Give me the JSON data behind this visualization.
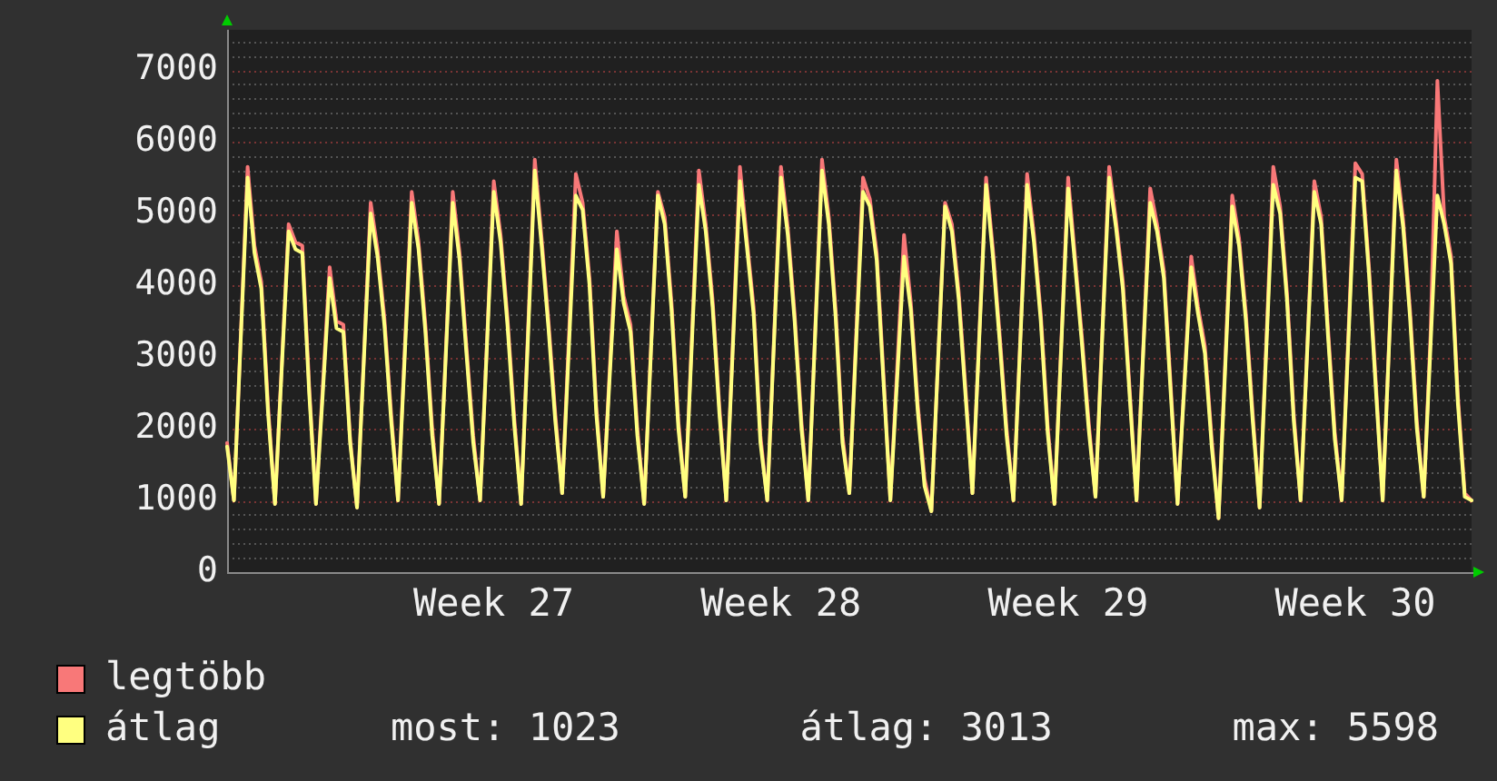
{
  "chart_data": {
    "type": "line",
    "categories": [
      null,
      null,
      null,
      null,
      null,
      null,
      null,
      null,
      null,
      null,
      null,
      null,
      null,
      null,
      null,
      null,
      null,
      null,
      null,
      null,
      null,
      null,
      null,
      null,
      null,
      null,
      null,
      null,
      null,
      null,
      null,
      null,
      null,
      null,
      null,
      null,
      null,
      null,
      null,
      "Week 27",
      null,
      null,
      null,
      null,
      null,
      null,
      null,
      null,
      null,
      null,
      null,
      null,
      null,
      null,
      null,
      null,
      null,
      null,
      null,
      null,
      null,
      null,
      null,
      null,
      null,
      null,
      null,
      null,
      null,
      null,
      null,
      null,
      null,
      null,
      null,
      null,
      null,
      null,
      null,
      null,
      null,
      "Week 28",
      null,
      null,
      null,
      null,
      null,
      null,
      null,
      null,
      null,
      null,
      null,
      null,
      null,
      null,
      null,
      null,
      null,
      null,
      null,
      null,
      null,
      null,
      null,
      null,
      null,
      null,
      null,
      null,
      null,
      null,
      null,
      null,
      null,
      null,
      null,
      null,
      null,
      null,
      null,
      null,
      null,
      "Week 29",
      null,
      null,
      null,
      null,
      null,
      null,
      null,
      null,
      null,
      null,
      null,
      null,
      null,
      null,
      null,
      null,
      null,
      null,
      null,
      null,
      null,
      null,
      null,
      null,
      null,
      null,
      null,
      null,
      null,
      null,
      null,
      null,
      null,
      null,
      null,
      null,
      null,
      null,
      null,
      null,
      null,
      "Week 30",
      null,
      null,
      null,
      null,
      null,
      null,
      null,
      null,
      null,
      null,
      null,
      null,
      null,
      null,
      null,
      null,
      null
    ],
    "series": [
      {
        "name": "legtöbb",
        "color": "#f87878",
        "values": [
          1800,
          1000,
          3300,
          5650,
          4550,
          4050,
          2300,
          950,
          2900,
          4850,
          4600,
          4550,
          2600,
          950,
          2600,
          4250,
          3500,
          3450,
          1850,
          900,
          3000,
          5150,
          4500,
          3550,
          2200,
          1000,
          3150,
          5300,
          4600,
          3450,
          2000,
          950,
          3100,
          5300,
          4450,
          3150,
          1900,
          1000,
          3200,
          5450,
          4700,
          3550,
          2150,
          950,
          3350,
          5750,
          4650,
          3500,
          2200,
          1100,
          3300,
          5550,
          5150,
          4100,
          2300,
          1050,
          2900,
          4750,
          3850,
          3450,
          2000,
          950,
          3150,
          5300,
          4950,
          3750,
          2100,
          1050,
          3350,
          5600,
          4850,
          3800,
          2300,
          1000,
          3300,
          5650,
          4650,
          3700,
          1900,
          1000,
          3300,
          5650,
          4800,
          3600,
          2100,
          1000,
          3350,
          5750,
          4950,
          3650,
          1900,
          1100,
          3300,
          5500,
          5200,
          4450,
          2750,
          1000,
          2850,
          4700,
          3750,
          2350,
          1300,
          850,
          3000,
          5150,
          4850,
          3900,
          2550,
          1100,
          3300,
          5500,
          4500,
          3300,
          2000,
          1000,
          3250,
          5550,
          4700,
          3600,
          2050,
          950,
          3200,
          5500,
          4400,
          3300,
          2100,
          1050,
          3350,
          5650,
          4900,
          4050,
          2550,
          1000,
          3150,
          5350,
          4850,
          4200,
          2600,
          950,
          2650,
          4400,
          3700,
          3150,
          1850,
          750,
          3000,
          5250,
          4650,
          3600,
          2200,
          900,
          3250,
          5650,
          5100,
          3900,
          2200,
          1000,
          3200,
          5450,
          4950,
          3400,
          1950,
          1000,
          3350,
          5700,
          5550,
          4250,
          2650,
          1000,
          3350,
          5750,
          4900,
          3650,
          2100,
          1050,
          3300,
          6850,
          4950,
          4400,
          2450,
          1100,
          1000
        ]
      },
      {
        "name": "átlag",
        "color": "#ffff80",
        "values": [
          1750,
          1000,
          3250,
          5500,
          4450,
          3950,
          2200,
          950,
          2850,
          4750,
          4500,
          4450,
          2500,
          950,
          2500,
          4100,
          3400,
          3350,
          1800,
          900,
          2950,
          5000,
          4400,
          3450,
          2100,
          1000,
          3050,
          5150,
          4500,
          3350,
          1900,
          950,
          3050,
          5150,
          4350,
          3050,
          1800,
          1000,
          3150,
          5300,
          4600,
          3450,
          2050,
          950,
          3250,
          5600,
          4550,
          3400,
          2100,
          1100,
          3150,
          5250,
          5050,
          4000,
          2200,
          1050,
          2800,
          4500,
          3750,
          3350,
          1900,
          950,
          3100,
          5250,
          4850,
          3650,
          2000,
          1050,
          3250,
          5400,
          4750,
          3700,
          2200,
          1000,
          3200,
          5450,
          4550,
          3600,
          1800,
          1000,
          3250,
          5500,
          4700,
          3500,
          2000,
          1000,
          3300,
          5600,
          4850,
          3550,
          1800,
          1100,
          3200,
          5300,
          5100,
          4350,
          2650,
          1000,
          2700,
          4400,
          3650,
          2250,
          1200,
          850,
          3000,
          5100,
          4750,
          3800,
          2450,
          1100,
          3250,
          5400,
          4400,
          3200,
          1900,
          1000,
          3200,
          5400,
          4600,
          3500,
          1950,
          950,
          3150,
          5350,
          4300,
          3200,
          2000,
          1050,
          3300,
          5500,
          4800,
          3950,
          2450,
          1000,
          3100,
          5150,
          4750,
          4100,
          2500,
          950,
          2600,
          4250,
          3600,
          3050,
          1750,
          750,
          2900,
          5100,
          4550,
          3500,
          2100,
          900,
          3150,
          5400,
          5000,
          3800,
          2100,
          1000,
          3150,
          5300,
          4850,
          3300,
          1850,
          1000,
          3250,
          5500,
          5450,
          4150,
          2550,
          1000,
          3300,
          5600,
          4800,
          3550,
          2000,
          1050,
          3150,
          5250,
          4850,
          4300,
          2350,
          1050,
          1000
        ]
      }
    ],
    "ylim": [
      0,
      7560
    ],
    "yticks": [
      0,
      {
        "value": 200,
        "label": null
      },
      {
        "value": 400,
        "label": null
      },
      {
        "value": 600,
        "label": null
      },
      {
        "value": 800,
        "label": null
      },
      1000,
      {
        "value": 1200,
        "label": null
      },
      {
        "value": 1400,
        "label": null
      },
      {
        "value": 1600,
        "label": null
      },
      {
        "value": 1800,
        "label": null
      },
      2000,
      {
        "value": 2200,
        "label": null
      },
      {
        "value": 2400,
        "label": null
      },
      {
        "value": 2600,
        "label": null
      },
      {
        "value": 2800,
        "label": null
      },
      3000,
      {
        "value": 3200,
        "label": null
      },
      {
        "value": 3400,
        "label": null
      },
      {
        "value": 3600,
        "label": null
      },
      {
        "value": 3800,
        "label": null
      },
      4000,
      {
        "value": 4200,
        "label": null
      },
      {
        "value": 4400,
        "label": null
      },
      {
        "value": 4600,
        "label": null
      },
      {
        "value": 4800,
        "label": null
      },
      5000,
      {
        "value": 5200,
        "label": null
      },
      {
        "value": 5400,
        "label": null
      },
      {
        "value": 5600,
        "label": null
      },
      {
        "value": 5800,
        "label": null
      },
      6000,
      {
        "value": 6200,
        "label": null
      },
      {
        "value": 6400,
        "label": null
      },
      {
        "value": 6600,
        "label": null
      },
      {
        "value": 6800,
        "label": null
      },
      7000,
      {
        "value": 7200,
        "label": null
      },
      {
        "value": 7400,
        "label": null
      }
    ],
    "grid": "y",
    "legend": "bottom",
    "marker": "none",
    "annotations": [
      "most: 1023",
      "átlag: 3013",
      "max: 5598"
    ]
  }
}
